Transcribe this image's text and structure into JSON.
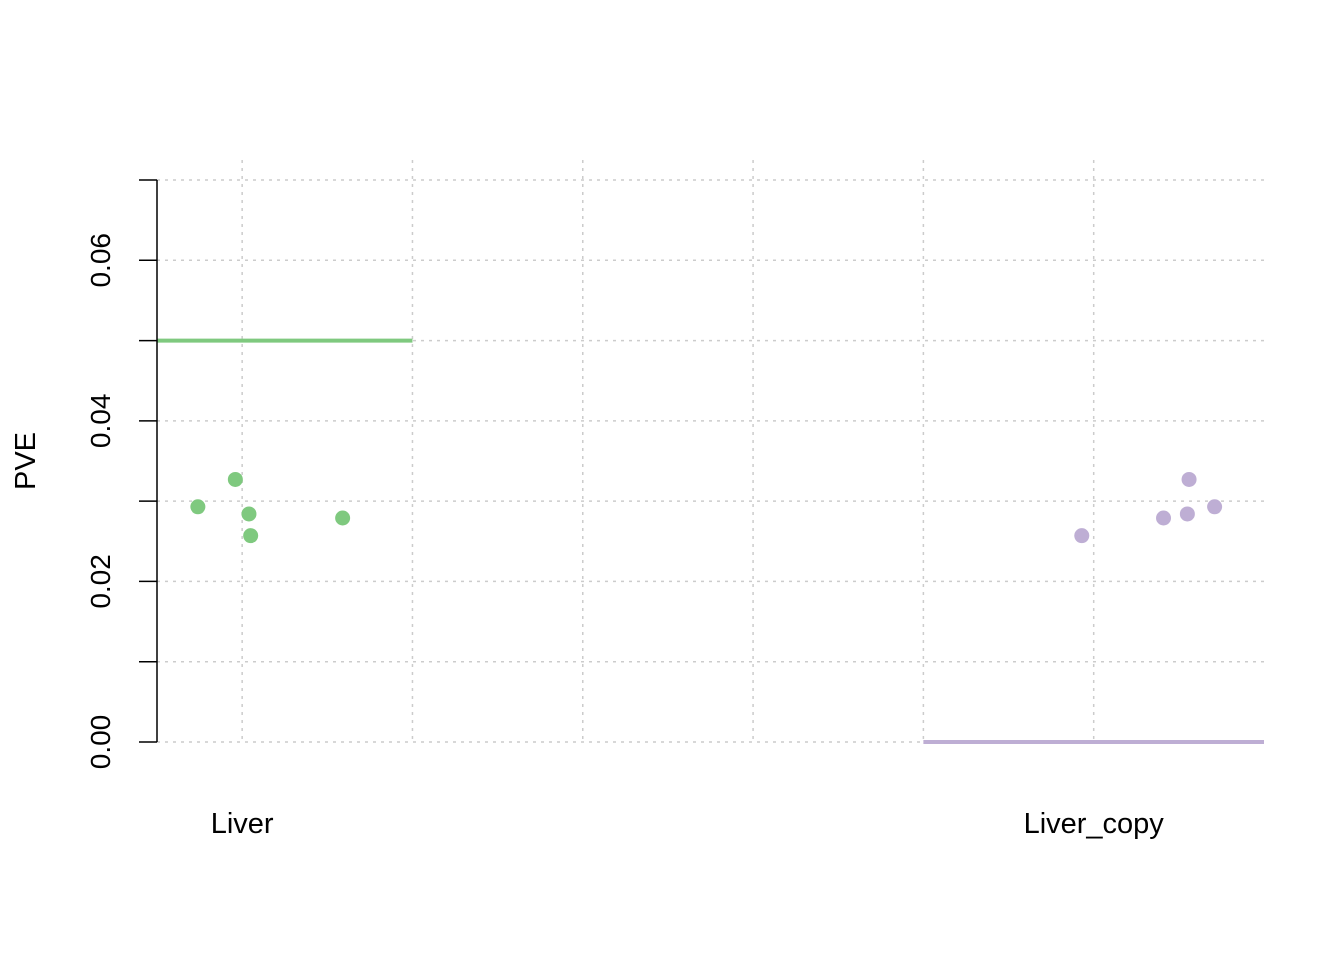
{
  "chart_data": {
    "type": "scatter",
    "title": "",
    "xlabel": "",
    "ylabel": "PVE",
    "ylim": [
      0,
      0.07
    ],
    "y_ticks": [
      0.0,
      0.01,
      0.02,
      0.03,
      0.04,
      0.05,
      0.06,
      0.07
    ],
    "y_tick_labels": [
      "0.00",
      "",
      "0.02",
      "",
      "0.04",
      "",
      "0.06",
      ""
    ],
    "x_range": [
      0.5,
      7.0
    ],
    "x_gridlines": [
      1,
      2,
      3,
      4,
      5,
      6
    ],
    "grid": true,
    "categories": [
      {
        "label": "Liver",
        "position": 1
      },
      {
        "label": "Liver_copy",
        "position": 6
      }
    ],
    "series": [
      {
        "color": "#7fc97f",
        "reference_line": {
          "x_from": 0.5,
          "x_to": 2,
          "y": 0.05
        },
        "points": [
          {
            "x": 0.74,
            "y": 0.0293
          },
          {
            "x": 0.96,
            "y": 0.0327
          },
          {
            "x": 1.04,
            "y": 0.0284
          },
          {
            "x": 1.05,
            "y": 0.0257
          },
          {
            "x": 1.59,
            "y": 0.0279
          }
        ]
      },
      {
        "color": "#beaed4",
        "reference_line": {
          "x_from": 5,
          "x_to": 7,
          "y": 0.0
        },
        "points": [
          {
            "x": 5.93,
            "y": 0.0257
          },
          {
            "x": 6.41,
            "y": 0.0279
          },
          {
            "x": 6.55,
            "y": 0.0284
          },
          {
            "x": 6.56,
            "y": 0.0327
          },
          {
            "x": 6.71,
            "y": 0.0293
          }
        ]
      }
    ]
  }
}
